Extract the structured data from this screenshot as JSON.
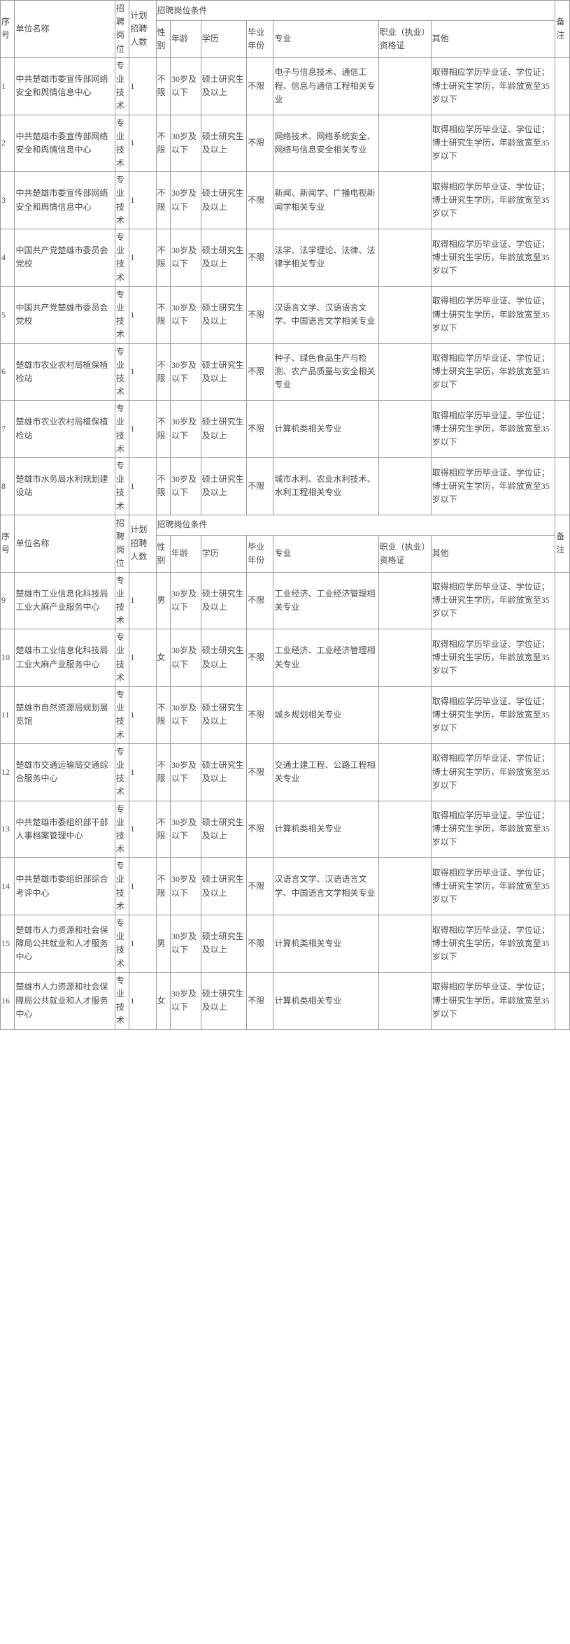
{
  "headers": {
    "seq": "序号",
    "unit": "单位名称",
    "post": "招聘岗位",
    "num": "计划招聘人数",
    "conditions": "招聘岗位条件",
    "sex": "性别",
    "age": "年龄",
    "edu": "学历",
    "year": "毕业年份",
    "major": "专业",
    "cert": "职业（执业）资格证",
    "other": "其他",
    "remark": "备注"
  },
  "rows": [
    {
      "seq": "1",
      "unit": "中共楚雄市委宣传部网络安全和舆情信息中心",
      "post": "专业技术",
      "num": "1",
      "sex": "不限",
      "age": "30岁及以下",
      "edu": "硕士研究生及以上",
      "year": "不限",
      "major": "电子与信息技术、通信工程、信息与通信工程相关专业",
      "cert": "",
      "other": "取得相应学历毕业证、学位证；博士研究生学历，年龄放宽至35岁以下",
      "remark": ""
    },
    {
      "seq": "2",
      "unit": "中共楚雄市委宣传部网络安全和舆情信息中心",
      "post": "专业技术",
      "num": "1",
      "sex": "不限",
      "age": "30岁及以下",
      "edu": "硕士研究生及以上",
      "year": "不限",
      "major": "网络技术、网络系统安全、网络与信息安全相关专业",
      "cert": "",
      "other": "取得相应学历毕业证、学位证；博士研究生学历，年龄放宽至35岁以下",
      "remark": ""
    },
    {
      "seq": "3",
      "unit": "中共楚雄市委宣传部网络安全和舆情信息中心",
      "post": "专业技术",
      "num": "1",
      "sex": "不限",
      "age": "30岁及以下",
      "edu": "硕士研究生及以上",
      "year": "不限",
      "major": "新闻、新闻学、广播电视新闻学相关专业",
      "cert": "",
      "other": "取得相应学历毕业证、学位证；博士研究生学历，年龄放宽至35岁以下",
      "remark": ""
    },
    {
      "seq": "4",
      "unit": "中国共产党楚雄市委员会党校",
      "post": "专业技术",
      "num": "1",
      "sex": "不限",
      "age": "30岁及以下",
      "edu": "硕士研究生及以上",
      "year": "不限",
      "major": "法学、法学理论、法律、法律学相关专业",
      "cert": "",
      "other": "取得相应学历毕业证、学位证；博士研究生学历，年龄放宽至35岁以下",
      "remark": ""
    },
    {
      "seq": "5",
      "unit": "中国共产党楚雄市委员会党校",
      "post": "专业技术",
      "num": "1",
      "sex": "不限",
      "age": "30岁及以下",
      "edu": "硕士研究生及以上",
      "year": "不限",
      "major": "汉语言文学、汉语语言文学、中国语言文学相关专业",
      "cert": "",
      "other": "取得相应学历毕业证、学位证；博士研究生学历，年龄放宽至35岁以下",
      "remark": ""
    },
    {
      "seq": "6",
      "unit": "楚雄市农业农村局植保植检站",
      "post": "专业技术",
      "num": "1",
      "sex": "不限",
      "age": "30岁及以下",
      "edu": "硕士研究生及以上",
      "year": "不限",
      "major": "种子、绿色食品生产与检测、农产品质量与安全相关专业",
      "cert": "",
      "other": "取得相应学历毕业证、学位证；博士研究生学历，年龄放宽至35岁以下",
      "remark": ""
    },
    {
      "seq": "7",
      "unit": "楚雄市农业农村局植保植检站",
      "post": "专业技术",
      "num": "1",
      "sex": "不限",
      "age": "30岁及以下",
      "edu": "硕士研究生及以上",
      "year": "不限",
      "major": "计算机类相关专业",
      "cert": "",
      "other": "取得相应学历毕业证、学位证；博士研究生学历，年龄放宽至35岁以下",
      "remark": ""
    },
    {
      "seq": "8",
      "unit": "楚雄市水务局水利规划建设站",
      "post": "专业技术",
      "num": "1",
      "sex": "不限",
      "age": "30岁及以下",
      "edu": "硕士研究生及以上",
      "year": "不限",
      "major": "城市水利、农业水利技术、水利工程相关专业",
      "cert": "",
      "other": "取得相应学历毕业证、学位证；博士研究生学历，年龄放宽至35岁以下",
      "remark": ""
    },
    {
      "seq": "9",
      "unit": "楚雄市工业信息化科技局工业大麻产业服务中心",
      "post": "专业技术",
      "num": "1",
      "sex": "男",
      "age": "30岁及以下",
      "edu": "硕士研究生及以上",
      "year": "不限",
      "major": "工业经济、工业经济管理相关专业",
      "cert": "",
      "other": "取得相应学历毕业证、学位证；博士研究生学历，年龄放宽至35岁以下",
      "remark": ""
    },
    {
      "seq": "10",
      "unit": "楚雄市工业信息化科技局工业大麻产业服务中心",
      "post": "专业技术",
      "num": "1",
      "sex": "女",
      "age": "30岁及以下",
      "edu": "硕士研究生及以上",
      "year": "不限",
      "major": "工业经济、工业经济管理相关专业",
      "cert": "",
      "other": "取得相应学历毕业证、学位证；博士研究生学历，年龄放宽至35岁以下",
      "remark": ""
    },
    {
      "seq": "11",
      "unit": "楚雄市自然资源局规划展览馆",
      "post": "专业技术",
      "num": "1",
      "sex": "不限",
      "age": "30岁及以下",
      "edu": "硕士研究生及以上",
      "year": "不限",
      "major": "城乡规划相关专业",
      "cert": "",
      "other": "取得相应学历毕业证、学位证；博士研究生学历，年龄放宽至35岁以下",
      "remark": ""
    },
    {
      "seq": "12",
      "unit": "楚雄市交通运输局交通综合服务中心",
      "post": "专业技术",
      "num": "1",
      "sex": "不限",
      "age": "30岁及以下",
      "edu": "硕士研究生及以上",
      "year": "不限",
      "major": "交通土建工程、公路工程相关专业",
      "cert": "",
      "other": "取得相应学历毕业证、学位证；博士研究生学历，年龄放宽至35岁以下",
      "remark": ""
    },
    {
      "seq": "13",
      "unit": "中共楚雄市委组织部干部人事档案管理中心",
      "post": "专业技术",
      "num": "1",
      "sex": "不限",
      "age": "30岁及以下",
      "edu": "硕士研究生及以上",
      "year": "不限",
      "major": "计算机类相关专业",
      "cert": "",
      "other": "取得相应学历毕业证、学位证；博士研究生学历，年龄放宽至35岁以下",
      "remark": ""
    },
    {
      "seq": "14",
      "unit": "中共楚雄市委组织部综合考评中心",
      "post": "专业技术",
      "num": "1",
      "sex": "不限",
      "age": "30岁及以下",
      "edu": "硕士研究生及以上",
      "year": "不限",
      "major": "汉语言文学、汉语语言文学、中国语言文学相关专业",
      "cert": "",
      "other": "取得相应学历毕业证、学位证；博士研究生学历，年龄放宽至35岁以下",
      "remark": ""
    },
    {
      "seq": "15",
      "unit": "楚雄市人力资源和社会保障局公共就业和人才服务中心",
      "post": "专业技术",
      "num": "1",
      "sex": "男",
      "age": "30岁及以下",
      "edu": "硕士研究生及以上",
      "year": "不限",
      "major": "计算机类相关专业",
      "cert": "",
      "other": "取得相应学历毕业证、学位证；博士研究生学历，年龄放宽至35岁以下",
      "remark": ""
    },
    {
      "seq": "16",
      "unit": "楚雄市人力资源和社会保障局公共就业和人才服务中心",
      "post": "专业技术",
      "num": "1",
      "sex": "女",
      "age": "30岁及以下",
      "edu": "硕士研究生及以上",
      "year": "不限",
      "major": "计算机类相关专业",
      "cert": "",
      "other": "取得相应学历毕业证、学位证；博士研究生学历，年龄放宽至35岁以下",
      "remark": ""
    }
  ]
}
